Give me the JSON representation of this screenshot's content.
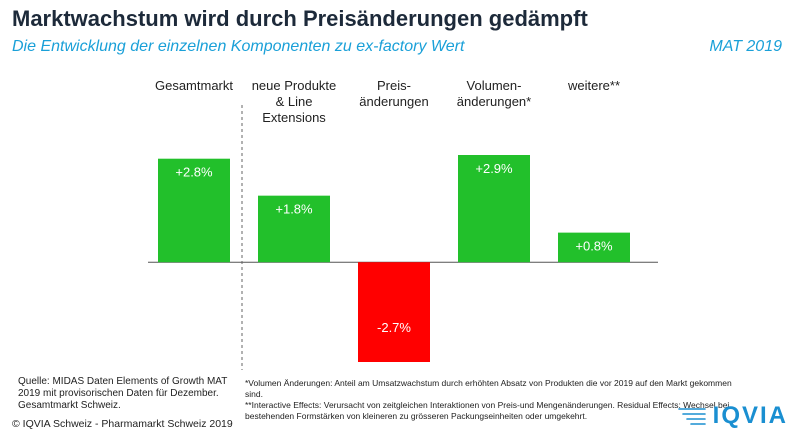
{
  "header": {
    "title": "Marktwachstum wird durch Preisänderungen gedämpft",
    "subtitle": "Die Entwicklung der einzelnen Komponenten zu ex-factory Wert",
    "period": "MAT 2019"
  },
  "chart_data": {
    "type": "bar",
    "categories": [
      [
        "Gesamtmarkt"
      ],
      [
        "neue Produkte",
        "& Line",
        "Extensions"
      ],
      [
        "Preis-",
        "änderungen"
      ],
      [
        "Volumen-",
        "änderungen*"
      ],
      [
        "weitere**"
      ]
    ],
    "values": [
      2.8,
      1.8,
      -2.7,
      2.9,
      0.8
    ],
    "labels": [
      "+2.8%",
      "+1.8%",
      "-2.7%",
      "+2.9%",
      "+0.8%"
    ],
    "colors": {
      "positive": "#22c02b",
      "negative": "#ff0000",
      "label": "#ffffff"
    },
    "ylim": [
      -2.7,
      2.9
    ],
    "grid": false,
    "separator_after": 0
  },
  "footer": {
    "source": "Quelle: MIDAS Daten Elements of Growth MAT 2019 mit provisorischen Daten für Dezember. Gesamtmarkt Schweiz.",
    "footnote1": "*Volumen Änderungen: Anteil am Umsatzwachstum durch erhöhten Absatz von Produkten die vor 2019 auf den Markt gekommen sind.",
    "footnote2": "**Interactive Effects: Verursacht von zeitgleichen Interaktionen von Preis-und Mengenänderungen. Residual Effects: Wechsel bei bestehenden Formstärken von kleineren zu grösseren Packungseinheiten oder umgekehrt.",
    "copyright": "© IQVIA Schweiz - Pharmamarkt Schweiz 2019"
  },
  "logo": {
    "text": "IQVIA",
    "icon": "iqvia-logo-icon",
    "color": "#1a8fd1"
  }
}
